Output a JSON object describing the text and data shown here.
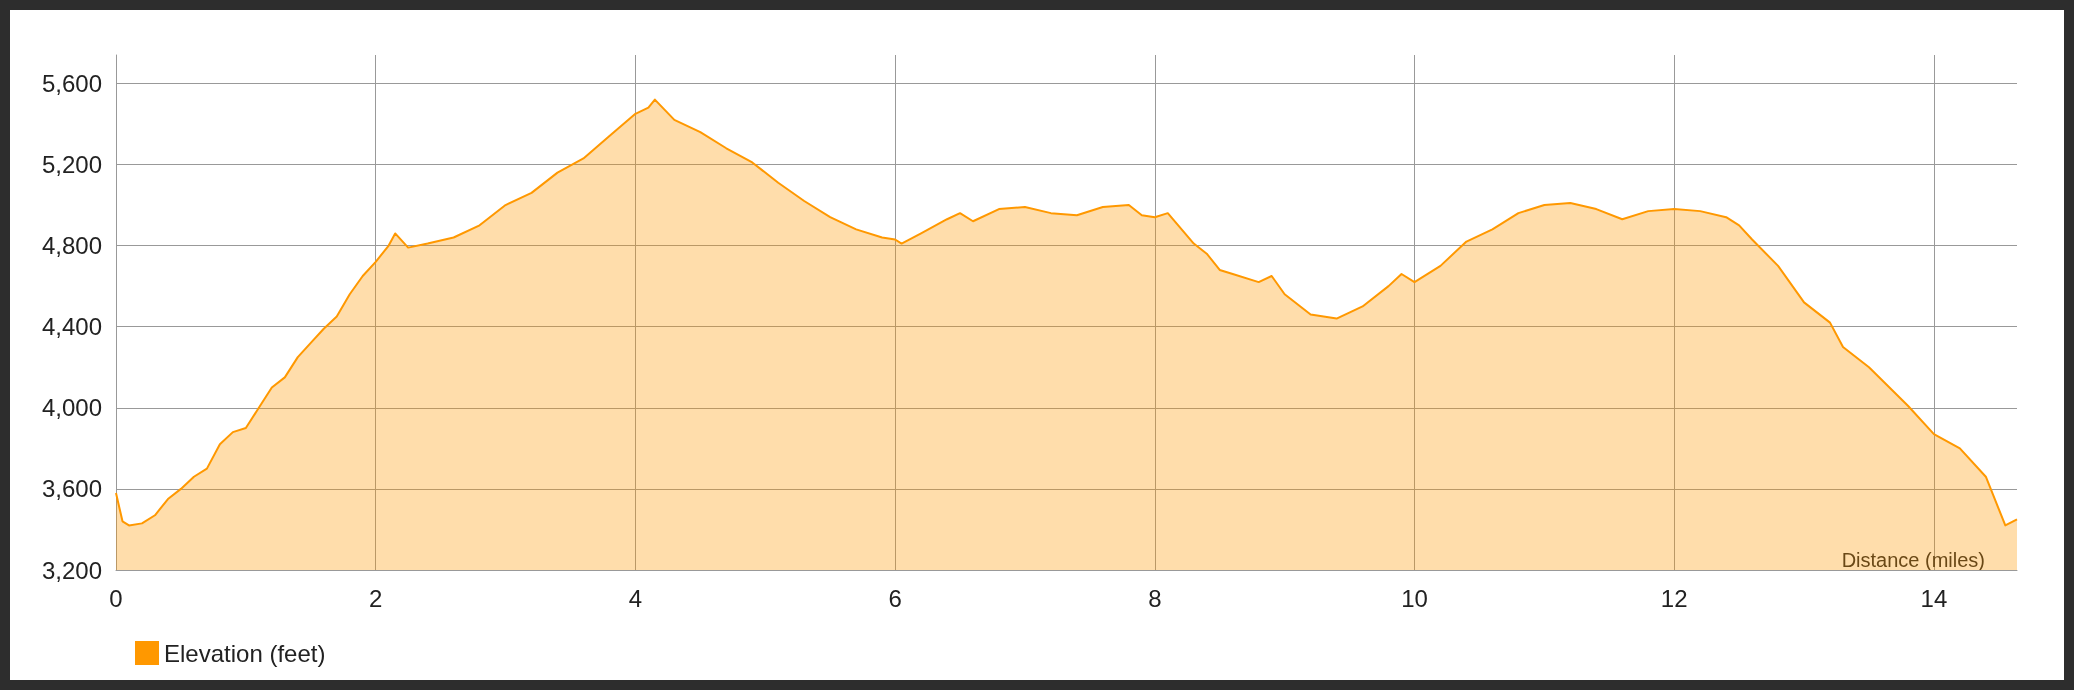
{
  "chart_data": {
    "type": "area",
    "xlabel": "Distance (miles)",
    "x": [
      0,
      0.05,
      0.1,
      0.2,
      0.3,
      0.4,
      0.5,
      0.6,
      0.7,
      0.8,
      0.9,
      1.0,
      1.1,
      1.2,
      1.3,
      1.4,
      1.5,
      1.6,
      1.7,
      1.8,
      1.9,
      2.0,
      2.1,
      2.15,
      2.25,
      2.4,
      2.6,
      2.8,
      3.0,
      3.2,
      3.4,
      3.6,
      3.8,
      4.0,
      4.1,
      4.15,
      4.3,
      4.5,
      4.7,
      4.9,
      5.1,
      5.3,
      5.5,
      5.7,
      5.9,
      6.0,
      6.05,
      6.2,
      6.4,
      6.5,
      6.6,
      6.8,
      7.0,
      7.2,
      7.4,
      7.6,
      7.8,
      7.9,
      8.0,
      8.1,
      8.3,
      8.4,
      8.5,
      8.6,
      8.8,
      8.9,
      9.0,
      9.2,
      9.4,
      9.6,
      9.8,
      9.9,
      10.0,
      10.2,
      10.4,
      10.6,
      10.8,
      11.0,
      11.2,
      11.4,
      11.6,
      11.8,
      12.0,
      12.2,
      12.4,
      12.5,
      12.6,
      12.8,
      13.0,
      13.2,
      13.3,
      13.5,
      13.8,
      14.0,
      14.2,
      14.4,
      14.55,
      14.64
    ],
    "series": [
      {
        "name": "Elevation (feet)",
        "color": "#ff9800",
        "values": [
          3580,
          3440,
          3420,
          3430,
          3470,
          3550,
          3600,
          3660,
          3700,
          3820,
          3880,
          3900,
          4000,
          4100,
          4150,
          4250,
          4320,
          4390,
          4450,
          4560,
          4650,
          4720,
          4800,
          4860,
          4790,
          4810,
          4840,
          4900,
          5000,
          5060,
          5160,
          5230,
          5340,
          5450,
          5480,
          5520,
          5420,
          5360,
          5280,
          5210,
          5110,
          5020,
          4940,
          4880,
          4840,
          4830,
          4810,
          4860,
          4930,
          4960,
          4920,
          4980,
          4990,
          4960,
          4950,
          4990,
          5000,
          4950,
          4940,
          4960,
          4810,
          4760,
          4680,
          4660,
          4620,
          4650,
          4560,
          4460,
          4440,
          4500,
          4600,
          4660,
          4620,
          4700,
          4820,
          4880,
          4960,
          5000,
          5010,
          4980,
          4930,
          4970,
          4980,
          4970,
          4940,
          4900,
          4830,
          4700,
          4520,
          4420,
          4300,
          4200,
          4010,
          3870,
          3800,
          3660,
          3420,
          3450
        ]
      }
    ],
    "xlim": [
      0,
      14.64
    ],
    "xticks": [
      0,
      2,
      4,
      6,
      8,
      10,
      12,
      14
    ],
    "ylim": [
      3200,
      5740
    ],
    "yticks": [
      {
        "value": 3200,
        "label": "3,200"
      },
      {
        "value": 3600,
        "label": "3,600"
      },
      {
        "value": 4000,
        "label": "4,000"
      },
      {
        "value": 4400,
        "label": "4,400"
      },
      {
        "value": 4800,
        "label": "4,800"
      },
      {
        "value": 5200,
        "label": "5,200"
      },
      {
        "value": 5600,
        "label": "5,600"
      }
    ],
    "grid": true,
    "legend": "bottom left",
    "marker": "none",
    "line_style": "solid"
  }
}
